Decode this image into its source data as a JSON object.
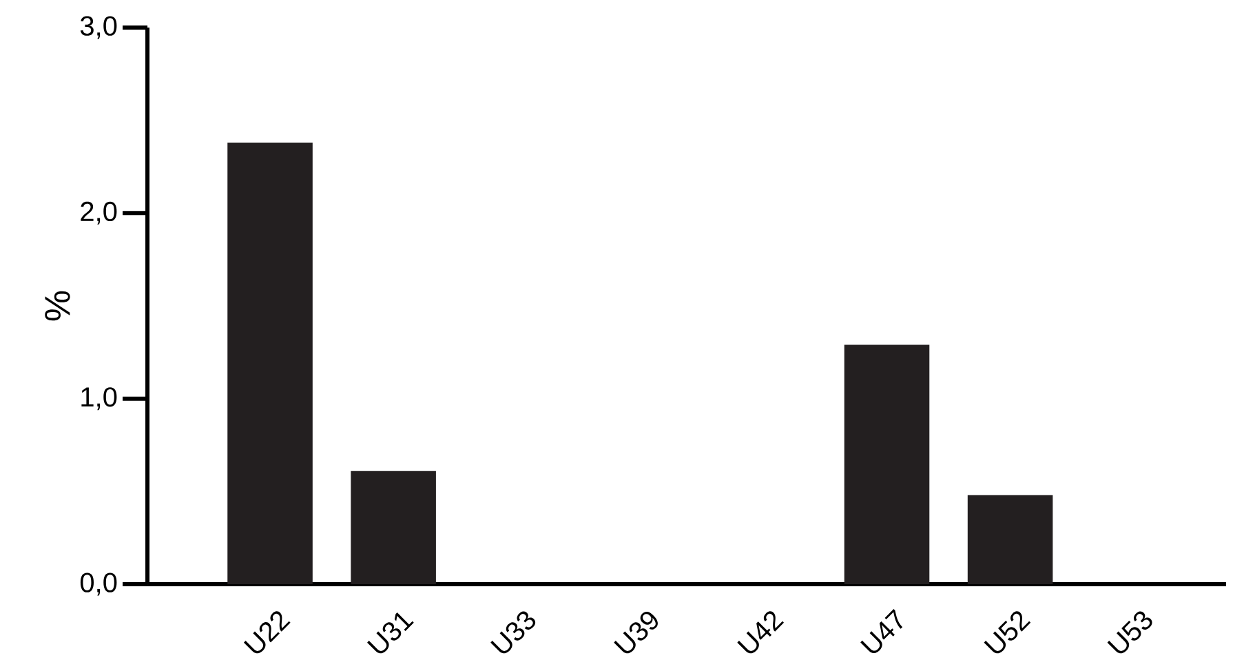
{
  "chart_data": {
    "type": "bar",
    "ylabel": "%",
    "categories": [
      "U22",
      "U31",
      "U33",
      "U39",
      "U42",
      "U47",
      "U52",
      "U53"
    ],
    "values": [
      2.38,
      0.61,
      0,
      0,
      0,
      1.29,
      0.48,
      0
    ],
    "color": "#231f20",
    "ylim": [
      0,
      3
    ],
    "yticks": [
      {
        "value": 0,
        "label": "0,0"
      },
      {
        "value": 1,
        "label": "1,0"
      },
      {
        "value": 2,
        "label": "2,0"
      },
      {
        "value": 3,
        "label": "3,0"
      }
    ]
  }
}
